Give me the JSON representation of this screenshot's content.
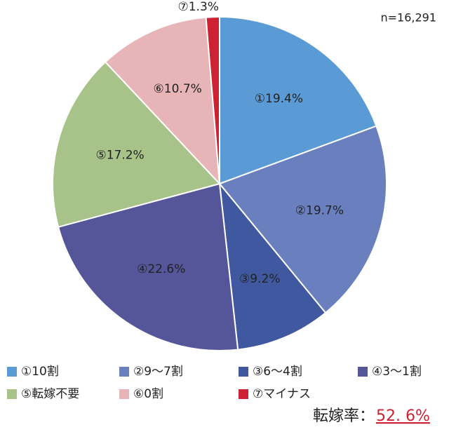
{
  "chart_data": {
    "type": "pie",
    "categories": [
      "①10割",
      "②9～7割",
      "③6～4割",
      "④3～1割",
      "⑤転嫁不要",
      "⑥0割",
      "⑦マイナス"
    ],
    "values": [
      19.4,
      19.7,
      9.2,
      22.6,
      17.2,
      10.7,
      1.3
    ],
    "value_labels": [
      "①19.4%",
      "②19.7%",
      "③9.2%",
      "④22.6%",
      "⑤17.2%",
      "⑥10.7%",
      "⑦1.3%"
    ],
    "colors": [
      "#5b9bd5",
      "#6a7fbe",
      "#3f58a0",
      "#55559a",
      "#a8c38a",
      "#e7b5b8",
      "#cc2233"
    ],
    "annotations": [
      "n=16,291",
      "転嫁率：",
      "52. 6%"
    ]
  }
}
